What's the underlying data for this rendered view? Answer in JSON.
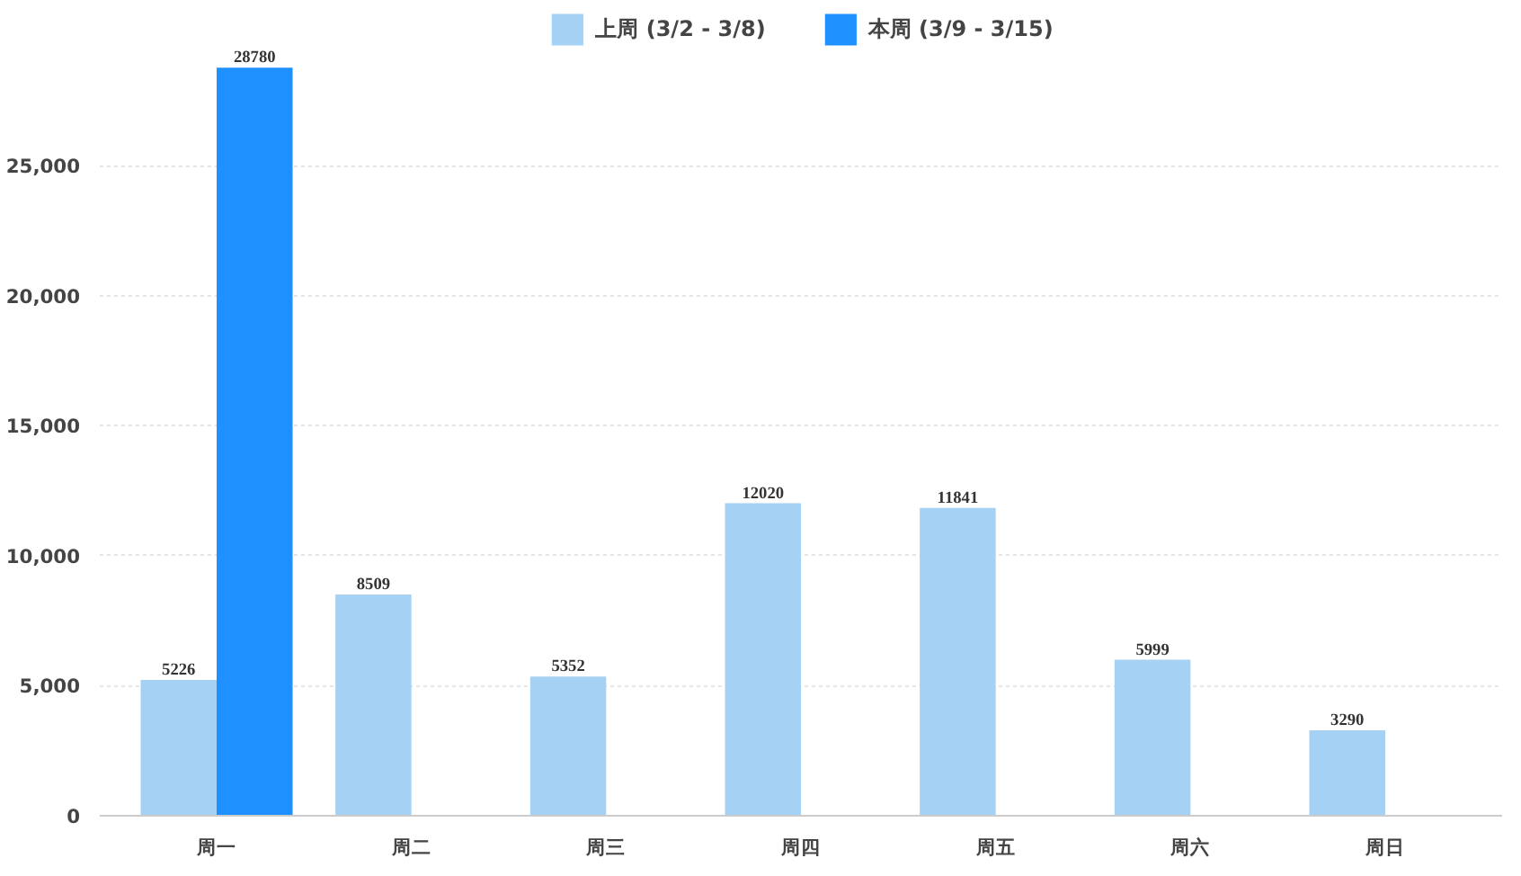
{
  "chart_data": {
    "type": "bar",
    "categories": [
      "周一",
      "周二",
      "周三",
      "周四",
      "周五",
      "周六",
      "周日"
    ],
    "series": [
      {
        "name": "上周 (3/2 - 3/8)",
        "color": "#a5d1f4",
        "values": [
          5226,
          8509,
          5352,
          12020,
          11841,
          5999,
          3290
        ]
      },
      {
        "name": "本周 (3/9 - 3/15)",
        "color": "#1e90ff",
        "values": [
          28780,
          null,
          null,
          null,
          null,
          null,
          null
        ]
      }
    ],
    "ylim": [
      0,
      31000
    ],
    "yticks": [
      0,
      {
        "value": 5000,
        "label": "5,000"
      },
      {
        "value": 10000,
        "label": "10,000"
      },
      {
        "value": 15000,
        "label": "15,000"
      },
      {
        "value": 20000,
        "label": "20,000"
      },
      {
        "value": 25000,
        "label": "25,000"
      }
    ],
    "grid": "y",
    "legend": "top",
    "data_labels": true
  }
}
